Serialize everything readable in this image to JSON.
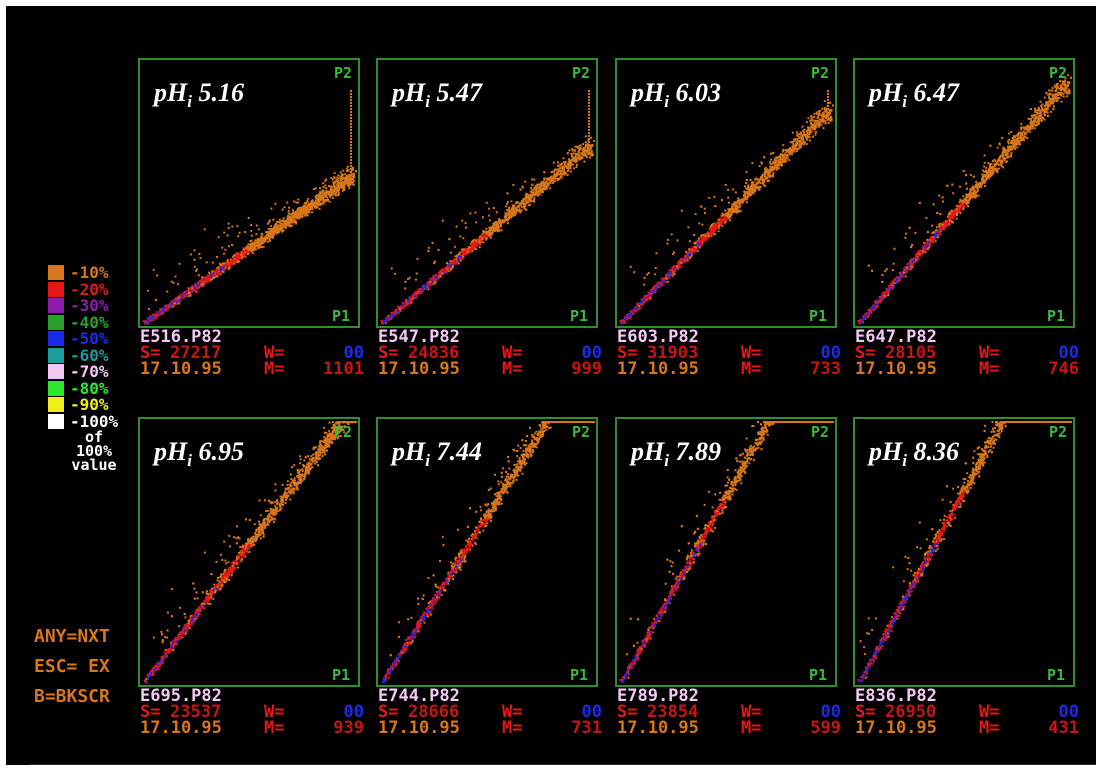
{
  "keys": [
    "ANY=NXT",
    "ESC= EX",
    "B=BKSCR"
  ],
  "legend": {
    "items": [
      {
        "label": "-10%",
        "color": "#d8761c"
      },
      {
        "label": "-20%",
        "color": "#e41818"
      },
      {
        "label": "-30%",
        "color": "#8c1cac"
      },
      {
        "label": "-40%",
        "color": "#2ca02c"
      },
      {
        "label": "-50%",
        "color": "#1a2ae8"
      },
      {
        "label": "-60%",
        "color": "#1c9c9c"
      },
      {
        "label": "-70%",
        "color": "#f4c8f4"
      },
      {
        "label": "-80%",
        "color": "#2ce82c"
      },
      {
        "label": "-90%",
        "color": "#f0f018"
      },
      {
        "label": "-100%",
        "color": "#ffffff"
      }
    ],
    "footer": [
      "of",
      "100%",
      "value"
    ]
  },
  "colors": {
    "frame": "#2f8f2f",
    "scatter_main": "#d8761c",
    "scatter_dense": "#e41818",
    "scatter_core": "#1a2ae8"
  },
  "chart_data": [
    {
      "type": "scatter",
      "title_main": "pH",
      "title_sub": "i",
      "title_value": "5.16",
      "xlabel": "P1",
      "ylabel": "P2",
      "file": "E516.P82",
      "s_label": "S=",
      "s_value": "27217",
      "w_label": "W=",
      "w_value": "00",
      "date": "17.10.95",
      "m_label": "M=",
      "m_value": "1101",
      "slope": 0.58,
      "curve": 0.7
    },
    {
      "type": "scatter",
      "title_main": "pH",
      "title_sub": "i",
      "title_value": "5.47",
      "xlabel": "P1",
      "ylabel": "P2",
      "file": "E547.P82",
      "s_label": "S=",
      "s_value": "24836",
      "w_label": "W=",
      "w_value": "00",
      "date": "17.10.95",
      "m_label": "M=",
      "m_value": "999",
      "slope": 0.7,
      "curve": 0.6
    },
    {
      "type": "scatter",
      "title_main": "pH",
      "title_sub": "i",
      "title_value": "6.03",
      "xlabel": "P1",
      "ylabel": "P2",
      "file": "E603.P82",
      "s_label": "S=",
      "s_value": "31903",
      "w_label": "W=",
      "w_value": "00",
      "date": "17.10.95",
      "m_label": "M=",
      "m_value": "733",
      "slope": 0.84,
      "curve": 0.4
    },
    {
      "type": "scatter",
      "title_main": "pH",
      "title_sub": "i",
      "title_value": "6.47",
      "xlabel": "P1",
      "ylabel": "P2",
      "file": "E647.P82",
      "s_label": "S=",
      "s_value": "28105",
      "w_label": "W=",
      "w_value": "00",
      "date": "17.10.95",
      "m_label": "M=",
      "m_value": "746",
      "slope": 0.95,
      "curve": 0.25
    },
    {
      "type": "scatter",
      "title_main": "pH",
      "title_sub": "i",
      "title_value": "6.95",
      "xlabel": "P1",
      "ylabel": "P2",
      "file": "E695.P82",
      "s_label": "S=",
      "s_value": "23537",
      "w_label": "W=",
      "w_value": "00",
      "date": "17.10.95",
      "m_label": "M=",
      "m_value": "939",
      "slope": 1.08,
      "curve": 0.12
    },
    {
      "type": "scatter",
      "title_main": "pH",
      "title_sub": "i",
      "title_value": "7.44",
      "xlabel": "P1",
      "ylabel": "P2",
      "file": "E744.P82",
      "s_label": "S=",
      "s_value": "28666",
      "w_label": "W=",
      "w_value": "00",
      "date": "17.10.95",
      "m_label": "M=",
      "m_value": "731",
      "slope": 1.3,
      "curve": 0.05
    },
    {
      "type": "scatter",
      "title_main": "pH",
      "title_sub": "i",
      "title_value": "7.89",
      "xlabel": "P1",
      "ylabel": "P2",
      "file": "E789.P82",
      "s_label": "S=",
      "s_value": "23854",
      "w_label": "W=",
      "w_value": "00",
      "date": "17.10.95",
      "m_label": "M=",
      "m_value": "599",
      "slope": 1.45,
      "curve": 0.0
    },
    {
      "type": "scatter",
      "title_main": "pH",
      "title_sub": "i",
      "title_value": "8.36",
      "xlabel": "P1",
      "ylabel": "P2",
      "file": "E836.P82",
      "s_label": "S=",
      "s_value": "26950",
      "w_label": "W=",
      "w_value": "00",
      "date": "17.10.95",
      "m_label": "M=",
      "m_value": "431",
      "slope": 1.5,
      "curve": 0.0
    }
  ]
}
